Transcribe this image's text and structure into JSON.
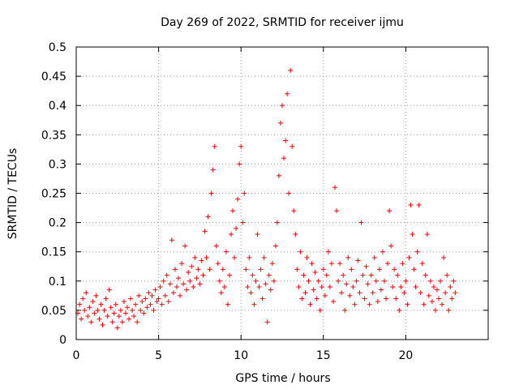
{
  "chart_data": {
    "type": "scatter",
    "title": "Day 269 of 2022, SRMTID for receiver ijmu",
    "xlabel": "GPS time / hours",
    "ylabel": "SRMTID / TECUs",
    "xlim": [
      0,
      25
    ],
    "ylim": [
      0,
      0.5
    ],
    "xticks": [
      0,
      5,
      10,
      15,
      20
    ],
    "xtick_labels": [
      "0",
      "5",
      "10",
      "15",
      "20"
    ],
    "yticks": [
      0,
      0.05,
      0.1,
      0.15,
      0.2,
      0.25,
      0.3,
      0.35,
      0.4,
      0.45,
      0.5
    ],
    "ytick_labels": [
      "0",
      "0.05",
      "0.1",
      "0.15",
      "0.2",
      "0.25",
      "0.3",
      "0.35",
      "0.4",
      "0.45",
      "0.5"
    ],
    "grid": true,
    "marker": "+",
    "color": "#ff0000",
    "series": [
      {
        "name": "SRMTID",
        "points": [
          [
            0.1,
            0.045
          ],
          [
            0.2,
            0.06
          ],
          [
            0.3,
            0.035
          ],
          [
            0.4,
            0.07
          ],
          [
            0.5,
            0.05
          ],
          [
            0.6,
            0.08
          ],
          [
            0.7,
            0.04
          ],
          [
            0.8,
            0.055
          ],
          [
            0.9,
            0.03
          ],
          [
            1.0,
            0.065
          ],
          [
            1.1,
            0.045
          ],
          [
            1.2,
            0.075
          ],
          [
            1.3,
            0.05
          ],
          [
            1.4,
            0.035
          ],
          [
            1.5,
            0.06
          ],
          [
            1.6,
            0.025
          ],
          [
            1.7,
            0.05
          ],
          [
            1.8,
            0.07
          ],
          [
            1.9,
            0.04
          ],
          [
            2.0,
            0.085
          ],
          [
            2.1,
            0.055
          ],
          [
            2.2,
            0.03
          ],
          [
            2.3,
            0.045
          ],
          [
            2.4,
            0.06
          ],
          [
            2.5,
            0.02
          ],
          [
            2.6,
            0.04
          ],
          [
            2.7,
            0.05
          ],
          [
            2.8,
            0.03
          ],
          [
            2.9,
            0.065
          ],
          [
            3.0,
            0.045
          ],
          [
            3.1,
            0.055
          ],
          [
            3.2,
            0.035
          ],
          [
            3.3,
            0.07
          ],
          [
            3.4,
            0.05
          ],
          [
            3.5,
            0.04
          ],
          [
            3.6,
            0.06
          ],
          [
            3.7,
            0.03
          ],
          [
            3.8,
            0.075
          ],
          [
            3.9,
            0.05
          ],
          [
            4.0,
            0.065
          ],
          [
            4.1,
            0.045
          ],
          [
            4.2,
            0.07
          ],
          [
            4.3,
            0.055
          ],
          [
            4.4,
            0.08
          ],
          [
            4.5,
            0.06
          ],
          [
            4.6,
            0.075
          ],
          [
            4.7,
            0.05
          ],
          [
            4.8,
            0.085
          ],
          [
            4.9,
            0.065
          ],
          [
            5.0,
            0.07
          ],
          [
            5.1,
            0.09
          ],
          [
            5.2,
            0.06
          ],
          [
            5.3,
            0.1
          ],
          [
            5.4,
            0.075
          ],
          [
            5.5,
            0.11
          ],
          [
            5.6,
            0.065
          ],
          [
            5.7,
            0.095
          ],
          [
            5.8,
            0.17
          ],
          [
            5.9,
            0.08
          ],
          [
            6.0,
            0.12
          ],
          [
            6.1,
            0.09
          ],
          [
            6.2,
            0.105
          ],
          [
            6.3,
            0.075
          ],
          [
            6.4,
            0.13
          ],
          [
            6.5,
            0.095
          ],
          [
            6.6,
            0.16
          ],
          [
            6.7,
            0.085
          ],
          [
            6.8,
            0.115
          ],
          [
            6.9,
            0.1
          ],
          [
            7.0,
            0.125
          ],
          [
            7.1,
            0.09
          ],
          [
            7.2,
            0.14
          ],
          [
            7.3,
            0.105
          ],
          [
            7.4,
            0.12
          ],
          [
            7.5,
            0.095
          ],
          [
            7.6,
            0.135
          ],
          [
            7.7,
            0.11
          ],
          [
            7.8,
            0.185
          ],
          [
            7.9,
            0.14
          ],
          [
            8.0,
            0.21
          ],
          [
            8.1,
            0.12
          ],
          [
            8.2,
            0.25
          ],
          [
            8.3,
            0.29
          ],
          [
            8.4,
            0.33
          ],
          [
            8.5,
            0.16
          ],
          [
            8.6,
            0.13
          ],
          [
            8.7,
            0.1
          ],
          [
            8.8,
            0.08
          ],
          [
            8.9,
            0.12
          ],
          [
            9.0,
            0.09
          ],
          [
            9.1,
            0.15
          ],
          [
            9.2,
            0.06
          ],
          [
            9.3,
            0.11
          ],
          [
            9.4,
            0.18
          ],
          [
            9.5,
            0.22
          ],
          [
            9.6,
            0.14
          ],
          [
            9.7,
            0.19
          ],
          [
            9.8,
            0.24
          ],
          [
            9.9,
            0.3
          ],
          [
            10.0,
            0.33
          ],
          [
            10.1,
            0.2
          ],
          [
            10.2,
            0.25
          ],
          [
            10.3,
            0.12
          ],
          [
            10.4,
            0.09
          ],
          [
            10.5,
            0.14
          ],
          [
            10.6,
            0.08
          ],
          [
            10.7,
            0.11
          ],
          [
            10.8,
            0.06
          ],
          [
            10.9,
            0.1
          ],
          [
            11.0,
            0.18
          ],
          [
            11.1,
            0.09
          ],
          [
            11.2,
            0.12
          ],
          [
            11.3,
            0.07
          ],
          [
            11.4,
            0.14
          ],
          [
            11.5,
            0.095
          ],
          [
            11.6,
            0.03
          ],
          [
            11.7,
            0.11
          ],
          [
            11.8,
            0.085
          ],
          [
            11.9,
            0.13
          ],
          [
            12.0,
            0.1
          ],
          [
            12.1,
            0.16
          ],
          [
            12.2,
            0.2
          ],
          [
            12.3,
            0.28
          ],
          [
            12.4,
            0.37
          ],
          [
            12.5,
            0.4
          ],
          [
            12.6,
            0.31
          ],
          [
            12.7,
            0.34
          ],
          [
            12.8,
            0.42
          ],
          [
            12.9,
            0.25
          ],
          [
            13.0,
            0.46
          ],
          [
            13.1,
            0.33
          ],
          [
            13.2,
            0.22
          ],
          [
            13.3,
            0.18
          ],
          [
            13.4,
            0.12
          ],
          [
            13.5,
            0.09
          ],
          [
            13.6,
            0.15
          ],
          [
            13.7,
            0.07
          ],
          [
            13.8,
            0.11
          ],
          [
            13.9,
            0.08
          ],
          [
            14.0,
            0.14
          ],
          [
            14.1,
            0.1
          ],
          [
            14.2,
            0.06
          ],
          [
            14.3,
            0.13
          ],
          [
            14.4,
            0.085
          ],
          [
            14.5,
            0.115
          ],
          [
            14.6,
            0.07
          ],
          [
            14.7,
            0.1
          ],
          [
            14.8,
            0.05
          ],
          [
            14.9,
            0.09
          ],
          [
            15.0,
            0.12
          ],
          [
            15.1,
            0.075
          ],
          [
            15.2,
            0.11
          ],
          [
            15.3,
            0.15
          ],
          [
            15.4,
            0.09
          ],
          [
            15.5,
            0.13
          ],
          [
            15.6,
            0.065
          ],
          [
            15.7,
            0.26
          ],
          [
            15.8,
            0.22
          ],
          [
            15.9,
            0.1
          ],
          [
            16.0,
            0.13
          ],
          [
            16.1,
            0.08
          ],
          [
            16.2,
            0.11
          ],
          [
            16.3,
            0.05
          ],
          [
            16.4,
            0.095
          ],
          [
            16.5,
            0.14
          ],
          [
            16.6,
            0.075
          ],
          [
            16.7,
            0.12
          ],
          [
            16.8,
            0.09
          ],
          [
            16.9,
            0.06
          ],
          [
            17.0,
            0.1
          ],
          [
            17.1,
            0.135
          ],
          [
            17.2,
            0.08
          ],
          [
            17.3,
            0.2
          ],
          [
            17.4,
            0.11
          ],
          [
            17.5,
            0.07
          ],
          [
            17.6,
            0.125
          ],
          [
            17.7,
            0.095
          ],
          [
            17.8,
            0.06
          ],
          [
            17.9,
            0.11
          ],
          [
            18.0,
            0.08
          ],
          [
            18.1,
            0.14
          ],
          [
            18.2,
            0.1
          ],
          [
            18.3,
            0.065
          ],
          [
            18.4,
            0.12
          ],
          [
            18.5,
            0.085
          ],
          [
            18.6,
            0.15
          ],
          [
            18.7,
            0.1
          ],
          [
            18.8,
            0.07
          ],
          [
            18.9,
            0.13
          ],
          [
            19.0,
            0.22
          ],
          [
            19.1,
            0.16
          ],
          [
            19.2,
            0.09
          ],
          [
            19.3,
            0.12
          ],
          [
            19.4,
            0.07
          ],
          [
            19.5,
            0.11
          ],
          [
            19.6,
            0.05
          ],
          [
            19.7,
            0.09
          ],
          [
            19.8,
            0.13
          ],
          [
            19.9,
            0.08
          ],
          [
            20.0,
            0.1
          ],
          [
            20.1,
            0.06
          ],
          [
            20.2,
            0.14
          ],
          [
            20.3,
            0.23
          ],
          [
            20.4,
            0.18
          ],
          [
            20.5,
            0.12
          ],
          [
            20.6,
            0.09
          ],
          [
            20.7,
            0.15
          ],
          [
            20.8,
            0.23
          ],
          [
            20.9,
            0.08
          ],
          [
            21.0,
            0.13
          ],
          [
            21.1,
            0.06
          ],
          [
            21.2,
            0.11
          ],
          [
            21.3,
            0.18
          ],
          [
            21.4,
            0.075
          ],
          [
            21.5,
            0.1
          ],
          [
            21.6,
            0.065
          ],
          [
            21.7,
            0.09
          ],
          [
            21.8,
            0.05
          ],
          [
            21.9,
            0.085
          ],
          [
            22.0,
            0.07
          ],
          [
            22.1,
            0.1
          ],
          [
            22.2,
            0.06
          ],
          [
            22.3,
            0.14
          ],
          [
            22.4,
            0.08
          ],
          [
            22.5,
            0.11
          ],
          [
            22.6,
            0.05
          ],
          [
            22.7,
            0.09
          ],
          [
            22.8,
            0.07
          ],
          [
            22.9,
            0.1
          ],
          [
            23.0,
            0.08
          ]
        ]
      }
    ]
  }
}
